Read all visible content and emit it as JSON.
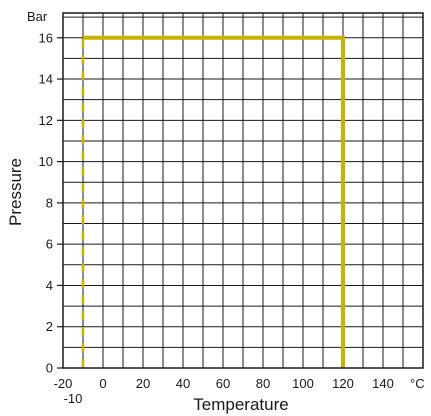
{
  "chart_data": {
    "type": "line",
    "title": "",
    "xlabel": "Temperature",
    "ylabel": "Pressure",
    "x_unit": "°C",
    "y_unit": "Bar",
    "xlim": [
      -20,
      160
    ],
    "ylim": [
      0,
      17.2
    ],
    "grid": true,
    "x_ticks": [
      -20,
      0,
      20,
      40,
      60,
      80,
      100,
      120,
      140
    ],
    "y_ticks": [
      0,
      2,
      4,
      6,
      8,
      10,
      12,
      14,
      16
    ],
    "extra_x_tick": -10,
    "line_color": "#c8b400",
    "series": [
      {
        "style": "dashed",
        "x": [
          -10,
          -10
        ],
        "y": [
          0,
          16
        ]
      },
      {
        "style": "solid",
        "x": [
          -10,
          120,
          120
        ],
        "y": [
          16,
          16,
          0
        ]
      }
    ]
  }
}
